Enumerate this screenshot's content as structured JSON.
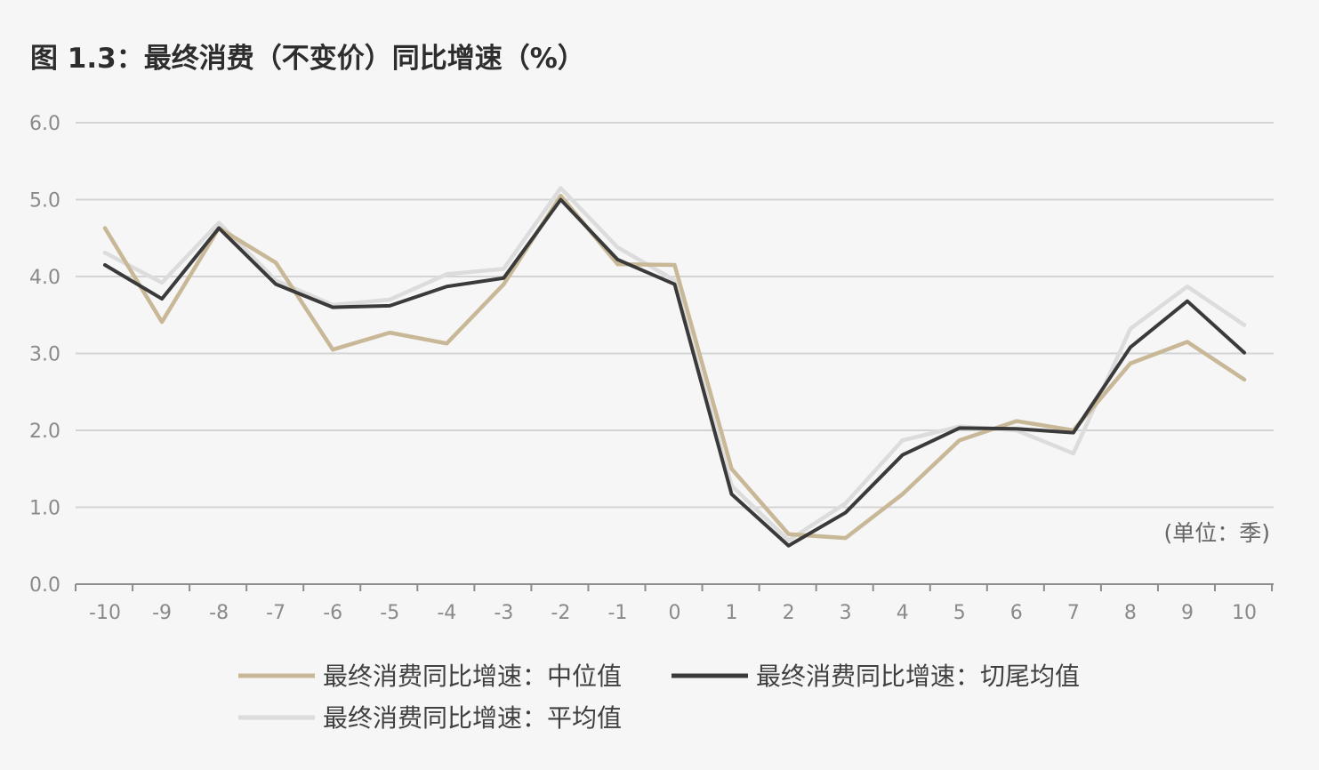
{
  "chart_data": {
    "type": "line",
    "title": "图 1.3：最终消费（不变价）同比增速（%）",
    "unit_note": "(单位：季)",
    "xlabel": "",
    "ylabel": "",
    "x": [
      -10,
      -9,
      -8,
      -7,
      -6,
      -5,
      -4,
      -3,
      -2,
      -1,
      0,
      1,
      2,
      3,
      4,
      5,
      6,
      7,
      8,
      9,
      10
    ],
    "x_tick_labels": [
      "-10",
      "-9",
      "-8",
      "-7",
      "-6",
      "-5",
      "-4",
      "-3",
      "-2",
      "-1",
      "0",
      "1",
      "2",
      "3",
      "4",
      "5",
      "6",
      "7",
      "8",
      "9",
      "10"
    ],
    "ylim": [
      0,
      6
    ],
    "y_ticks": [
      "0.0",
      "1.0",
      "2.0",
      "3.0",
      "4.0",
      "5.0",
      "6.0"
    ],
    "grid": true,
    "legend_position": "bottom",
    "series": [
      {
        "name": "最终消费同比增速：中位值",
        "color": "#c8b897",
        "values": [
          4.63,
          3.41,
          4.63,
          4.18,
          3.05,
          3.27,
          3.13,
          3.9,
          5.05,
          4.16,
          4.15,
          1.5,
          0.65,
          0.6,
          1.17,
          1.87,
          2.12,
          2.0,
          2.87,
          3.15,
          2.66
        ]
      },
      {
        "name": "最终消费同比增速：切尾均值",
        "color": "#3a3a3a",
        "values": [
          4.15,
          3.71,
          4.63,
          3.9,
          3.6,
          3.62,
          3.87,
          3.98,
          5.0,
          4.22,
          3.9,
          1.17,
          0.5,
          0.93,
          1.68,
          2.03,
          2.02,
          1.97,
          3.08,
          3.68,
          3.01
        ]
      },
      {
        "name": "最终消费同比增速：平均值",
        "color": "#dcdcdc",
        "values": [
          4.31,
          3.92,
          4.7,
          3.95,
          3.63,
          3.7,
          4.03,
          4.1,
          5.15,
          4.38,
          3.95,
          1.28,
          0.57,
          1.05,
          1.87,
          2.05,
          2.0,
          1.7,
          3.32,
          3.87,
          3.37
        ]
      }
    ]
  }
}
